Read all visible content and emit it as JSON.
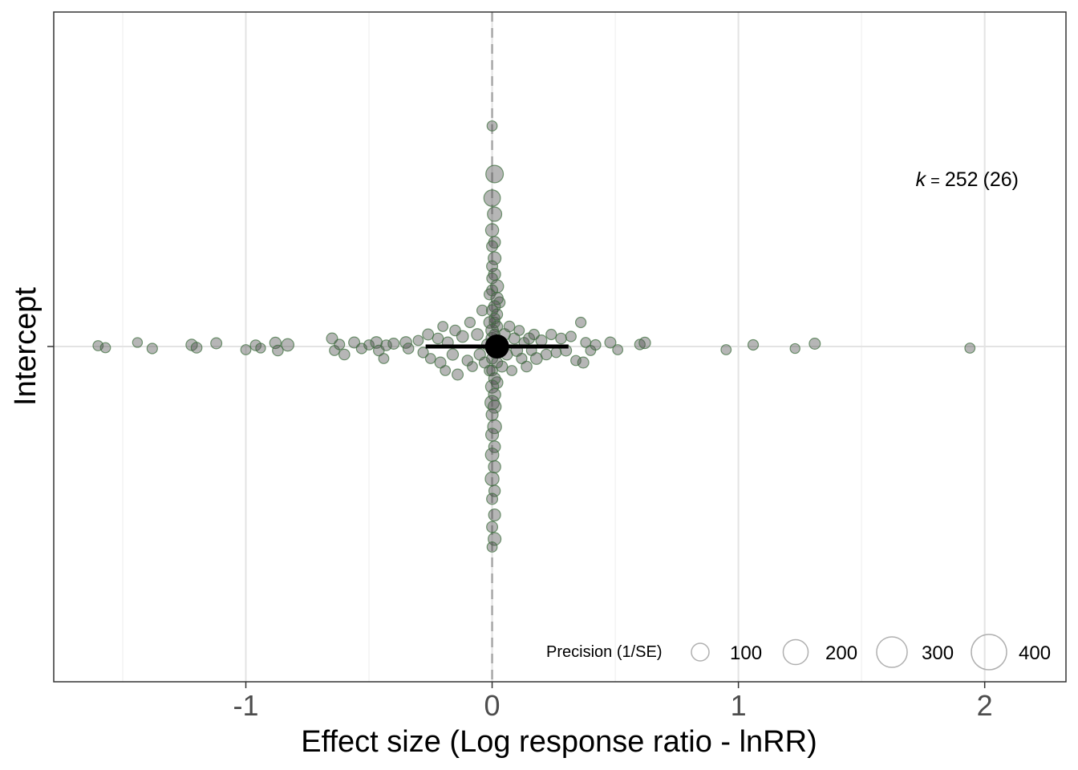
{
  "chart_data": {
    "type": "scatter",
    "subtype": "orchard-plot",
    "xlabel": "Effect size (Log response ratio - lnRR)",
    "ylabel": "Intercept",
    "y_categories": [
      "Intercept"
    ],
    "xlim": [
      -1.78,
      2.33
    ],
    "x_ticks": [
      -1,
      0,
      1,
      2
    ],
    "x_tick_labels": [
      "-1",
      "0",
      "1",
      "2"
    ],
    "grid": true,
    "reference_line_x": 0,
    "estimate": {
      "x": 0.02,
      "ci_low": -0.27,
      "ci_high": 0.31
    },
    "annotation": {
      "k_symbol": "k",
      "equals": "=",
      "value": "252",
      "groups": "(26)"
    },
    "legend": {
      "title": "Precision (1/SE)",
      "placement": "bottom-right",
      "sizes": [
        100,
        200,
        300,
        400
      ],
      "labels": [
        "100",
        "200",
        "300",
        "400"
      ]
    },
    "point_color": "#4a7a52",
    "points": [
      [
        -1.6,
        0.002,
        30
      ],
      [
        -1.57,
        -0.003,
        30
      ],
      [
        -1.44,
        0.01,
        28
      ],
      [
        -1.38,
        -0.005,
        32
      ],
      [
        -1.22,
        0.004,
        38
      ],
      [
        -1.2,
        -0.003,
        34
      ],
      [
        -1.12,
        0.008,
        36
      ],
      [
        -1.0,
        -0.008,
        30
      ],
      [
        -0.96,
        0.003,
        34
      ],
      [
        -0.94,
        -0.004,
        28
      ],
      [
        -0.88,
        0.009,
        38
      ],
      [
        -0.87,
        -0.01,
        34
      ],
      [
        -0.83,
        0.004,
        45
      ],
      [
        -0.65,
        0.02,
        36
      ],
      [
        -0.64,
        -0.01,
        30
      ],
      [
        -0.62,
        0.005,
        32
      ],
      [
        -0.6,
        -0.02,
        34
      ],
      [
        -0.56,
        0.01,
        36
      ],
      [
        -0.53,
        -0.005,
        32
      ],
      [
        -0.5,
        0.004,
        30
      ],
      [
        -0.47,
        0.01,
        40
      ],
      [
        -0.46,
        -0.01,
        34
      ],
      [
        -0.44,
        -0.03,
        30
      ],
      [
        -0.43,
        0.003,
        34
      ],
      [
        -0.4,
        0.007,
        36
      ],
      [
        -0.35,
        0.01,
        40
      ],
      [
        -0.34,
        -0.005,
        34
      ],
      [
        -0.3,
        0.015,
        30
      ],
      [
        -0.28,
        -0.015,
        32
      ],
      [
        -0.26,
        0.03,
        36
      ],
      [
        -0.25,
        -0.03,
        30
      ],
      [
        -0.22,
        0.02,
        34
      ],
      [
        -0.21,
        -0.04,
        36
      ],
      [
        -0.2,
        0.05,
        30
      ],
      [
        -0.19,
        -0.06,
        30
      ],
      [
        -0.18,
        0.01,
        36
      ],
      [
        -0.16,
        -0.02,
        38
      ],
      [
        -0.15,
        0.04,
        34
      ],
      [
        -0.14,
        -0.07,
        36
      ],
      [
        -0.12,
        0.025,
        40
      ],
      [
        -0.1,
        -0.035,
        34
      ],
      [
        -0.09,
        0.06,
        32
      ],
      [
        -0.08,
        -0.05,
        30
      ],
      [
        -0.06,
        0.03,
        40
      ],
      [
        -0.05,
        -0.02,
        38
      ],
      [
        -0.04,
        0.09,
        34
      ],
      [
        -0.03,
        -0.04,
        36
      ],
      [
        -0.02,
        0.005,
        36
      ],
      [
        -0.01,
        -0.06,
        34
      ],
      [
        0.0,
        0.02,
        44
      ],
      [
        0.0,
        -0.03,
        36
      ],
      [
        0.01,
        0.06,
        34
      ],
      [
        0.02,
        -0.09,
        40
      ],
      [
        0.03,
        0.11,
        36
      ],
      [
        0.04,
        -0.05,
        36
      ],
      [
        0.05,
        0.03,
        40
      ],
      [
        0.06,
        -0.02,
        36
      ],
      [
        0.07,
        0.05,
        34
      ],
      [
        0.08,
        -0.06,
        30
      ],
      [
        0.09,
        0.02,
        36
      ],
      [
        0.1,
        -0.01,
        40
      ],
      [
        0.11,
        0.04,
        30
      ],
      [
        0.12,
        -0.03,
        32
      ],
      [
        0.13,
        0.01,
        30
      ],
      [
        0.14,
        -0.05,
        34
      ],
      [
        0.15,
        0.02,
        36
      ],
      [
        0.16,
        -0.01,
        30
      ],
      [
        0.17,
        0.03,
        32
      ],
      [
        0.18,
        -0.03,
        40
      ],
      [
        0.2,
        0.015,
        36
      ],
      [
        0.22,
        -0.02,
        34
      ],
      [
        0.24,
        0.03,
        32
      ],
      [
        0.26,
        -0.015,
        30
      ],
      [
        0.28,
        0.02,
        34
      ],
      [
        0.3,
        -0.01,
        36
      ],
      [
        0.32,
        0.025,
        32
      ],
      [
        0.34,
        -0.035,
        30
      ],
      [
        0.36,
        0.06,
        32
      ],
      [
        0.37,
        -0.04,
        36
      ],
      [
        0.38,
        0.01,
        30
      ],
      [
        0.4,
        -0.01,
        30
      ],
      [
        0.42,
        0.004,
        32
      ],
      [
        0.48,
        0.01,
        36
      ],
      [
        0.51,
        -0.008,
        30
      ],
      [
        0.6,
        0.005,
        32
      ],
      [
        0.62,
        0.009,
        38
      ],
      [
        0.95,
        -0.008,
        30
      ],
      [
        1.06,
        0.004,
        32
      ],
      [
        1.23,
        -0.005,
        28
      ],
      [
        1.31,
        0.007,
        36
      ],
      [
        1.94,
        -0.004,
        30
      ],
      [
        0.0,
        0.55,
        30
      ],
      [
        0.01,
        0.43,
        90
      ],
      [
        0.0,
        0.37,
        80
      ],
      [
        0.01,
        0.33,
        60
      ],
      [
        0.0,
        0.29,
        50
      ],
      [
        0.01,
        0.26,
        40
      ],
      [
        0.0,
        0.25,
        36
      ],
      [
        0.01,
        0.22,
        48
      ],
      [
        0.0,
        0.2,
        36
      ],
      [
        0.01,
        0.18,
        42
      ],
      [
        0.0,
        0.17,
        34
      ],
      [
        0.02,
        0.15,
        50
      ],
      [
        0.0,
        0.14,
        36
      ],
      [
        -0.01,
        0.13,
        36
      ],
      [
        0.02,
        0.12,
        44
      ],
      [
        0.01,
        0.1,
        40
      ],
      [
        0.0,
        0.09,
        38
      ],
      [
        0.02,
        0.08,
        36
      ],
      [
        0.01,
        0.07,
        34
      ],
      [
        -0.01,
        0.06,
        40
      ],
      [
        0.02,
        0.05,
        36
      ],
      [
        0.0,
        0.04,
        46
      ],
      [
        0.01,
        0.03,
        34
      ],
      [
        0.02,
        -0.04,
        36
      ],
      [
        0.0,
        -0.06,
        34
      ],
      [
        0.01,
        -0.08,
        40
      ],
      [
        0.0,
        -0.1,
        50
      ],
      [
        0.01,
        -0.12,
        44
      ],
      [
        0.0,
        -0.14,
        60
      ],
      [
        0.01,
        -0.15,
        50
      ],
      [
        0.0,
        -0.17,
        42
      ],
      [
        0.01,
        -0.2,
        56
      ],
      [
        0.0,
        -0.22,
        48
      ],
      [
        0.01,
        -0.25,
        40
      ],
      [
        0.0,
        -0.27,
        52
      ],
      [
        0.01,
        -0.3,
        44
      ],
      [
        0.0,
        -0.33,
        56
      ],
      [
        0.01,
        -0.36,
        38
      ],
      [
        0.0,
        -0.38,
        36
      ],
      [
        0.01,
        -0.42,
        42
      ],
      [
        0.0,
        -0.45,
        36
      ],
      [
        0.01,
        -0.48,
        48
      ],
      [
        0.0,
        -0.5,
        30
      ]
    ]
  }
}
